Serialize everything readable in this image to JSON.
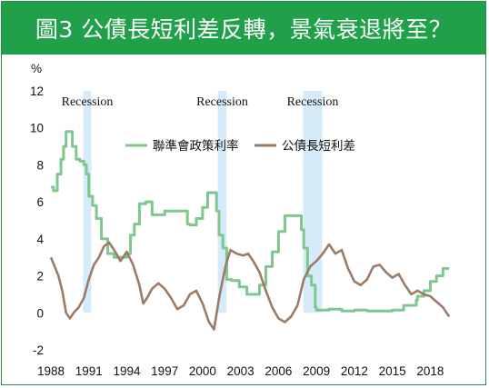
{
  "header": {
    "title": "圖3 公債長短利差反轉，景氣衰退將至？"
  },
  "chart_data": {
    "type": "line",
    "title": "圖3 公債長短利差反轉，景氣衰退將至？",
    "ylabel": "%",
    "xlabel": "",
    "xlim": [
      1988,
      2019.7
    ],
    "ylim": [
      -2,
      12
    ],
    "x_ticks": [
      "1988",
      "1991",
      "1994",
      "1997",
      "2000",
      "2003",
      "2006",
      "2009",
      "2012",
      "2015",
      "2018"
    ],
    "y_ticks": [
      "12",
      "10",
      "8",
      "6",
      "4",
      "2",
      "0",
      "-2"
    ],
    "grid": false,
    "legend_position": "top-center",
    "recessions": [
      {
        "label": "Recession",
        "start": 1990.55,
        "end": 1991.2
      },
      {
        "label": "Recession",
        "start": 2001.2,
        "end": 2001.9
      },
      {
        "label": "Recession",
        "start": 2007.95,
        "end": 2009.45
      }
    ],
    "series": [
      {
        "name": "聯準會政策利率",
        "color": "#7fc68f",
        "x": [
          1988.0,
          1988.2,
          1988.5,
          1988.8,
          1989.0,
          1989.2,
          1989.4,
          1989.7,
          1990.0,
          1990.3,
          1990.6,
          1990.8,
          1991.0,
          1991.3,
          1991.6,
          1992.0,
          1992.5,
          1993.0,
          1993.5,
          1994.0,
          1994.3,
          1994.6,
          1995.0,
          1995.5,
          1996.0,
          1996.5,
          1997.0,
          1997.5,
          1998.0,
          1998.5,
          1998.8,
          1999.0,
          1999.5,
          2000.0,
          2000.4,
          2000.9,
          2001.1,
          2001.3,
          2001.6,
          2001.9,
          2002.3,
          2002.9,
          2003.5,
          2004.0,
          2004.5,
          2005.0,
          2005.5,
          2006.0,
          2006.5,
          2007.0,
          2007.5,
          2007.8,
          2008.0,
          2008.3,
          2008.6,
          2008.9,
          2009.0,
          2010.0,
          2011.0,
          2012.0,
          2013.0,
          2014.0,
          2015.0,
          2015.9,
          2016.0,
          2016.9,
          2017.0,
          2017.5,
          2018.0,
          2018.5,
          2019.0,
          2019.5
        ],
        "values": [
          6.8,
          6.6,
          7.5,
          8.3,
          9.0,
          9.8,
          9.8,
          9.0,
          8.3,
          8.2,
          8.0,
          7.5,
          6.3,
          5.8,
          5.1,
          4.0,
          3.2,
          3.0,
          3.0,
          3.2,
          4.2,
          4.8,
          5.9,
          6.0,
          5.3,
          5.3,
          5.5,
          5.5,
          5.5,
          5.5,
          4.8,
          4.75,
          5.1,
          5.7,
          6.5,
          6.5,
          5.5,
          4.2,
          3.5,
          1.8,
          1.75,
          1.4,
          1.0,
          1.0,
          1.5,
          2.5,
          3.3,
          4.4,
          5.25,
          5.25,
          5.25,
          4.5,
          3.5,
          2.0,
          1.5,
          0.3,
          0.15,
          0.2,
          0.1,
          0.15,
          0.1,
          0.1,
          0.15,
          0.4,
          0.4,
          0.7,
          0.9,
          1.2,
          1.7,
          2.0,
          2.4,
          2.4
        ]
      },
      {
        "name": "公債長短利差",
        "color": "#9c7c66",
        "x": [
          1988.0,
          1988.3,
          1988.6,
          1988.9,
          1989.2,
          1989.5,
          1989.8,
          1990.2,
          1990.6,
          1991.0,
          1991.4,
          1991.8,
          1992.2,
          1992.6,
          1993.0,
          1993.5,
          1994.0,
          1994.5,
          1995.0,
          1995.3,
          1995.6,
          1996.0,
          1996.5,
          1997.0,
          1997.5,
          1998.0,
          1998.5,
          1999.0,
          1999.5,
          2000.0,
          2000.5,
          2000.9,
          2001.3,
          2001.8,
          2002.2,
          2002.7,
          2003.2,
          2003.6,
          2004.0,
          2004.5,
          2005.0,
          2005.5,
          2006.0,
          2006.5,
          2007.0,
          2007.5,
          2008.0,
          2008.5,
          2009.0,
          2009.5,
          2010.0,
          2010.5,
          2011.0,
          2011.5,
          2012.0,
          2012.5,
          2013.0,
          2013.5,
          2014.0,
          2014.5,
          2015.0,
          2015.5,
          2016.0,
          2016.5,
          2017.0,
          2017.5,
          2018.0,
          2018.5,
          2019.0,
          2019.3,
          2019.5
        ],
        "values": [
          3.0,
          2.5,
          2.0,
          1.2,
          0.0,
          -0.3,
          0.0,
          0.3,
          0.8,
          1.8,
          2.6,
          3.0,
          3.6,
          3.8,
          3.4,
          2.8,
          3.3,
          2.6,
          1.5,
          0.5,
          0.8,
          1.3,
          1.6,
          1.3,
          0.8,
          0.2,
          0.4,
          1.0,
          1.2,
          0.5,
          -0.5,
          -0.9,
          0.8,
          2.5,
          3.4,
          3.2,
          3.1,
          3.2,
          2.8,
          2.2,
          1.2,
          0.3,
          -0.3,
          -0.5,
          -0.2,
          0.4,
          1.8,
          2.5,
          2.8,
          3.2,
          3.7,
          3.2,
          3.4,
          2.4,
          1.7,
          1.5,
          1.8,
          2.5,
          2.6,
          2.2,
          1.9,
          2.1,
          1.5,
          1.0,
          1.2,
          1.0,
          0.9,
          0.6,
          0.3,
          0.0,
          -0.2
        ]
      }
    ]
  }
}
